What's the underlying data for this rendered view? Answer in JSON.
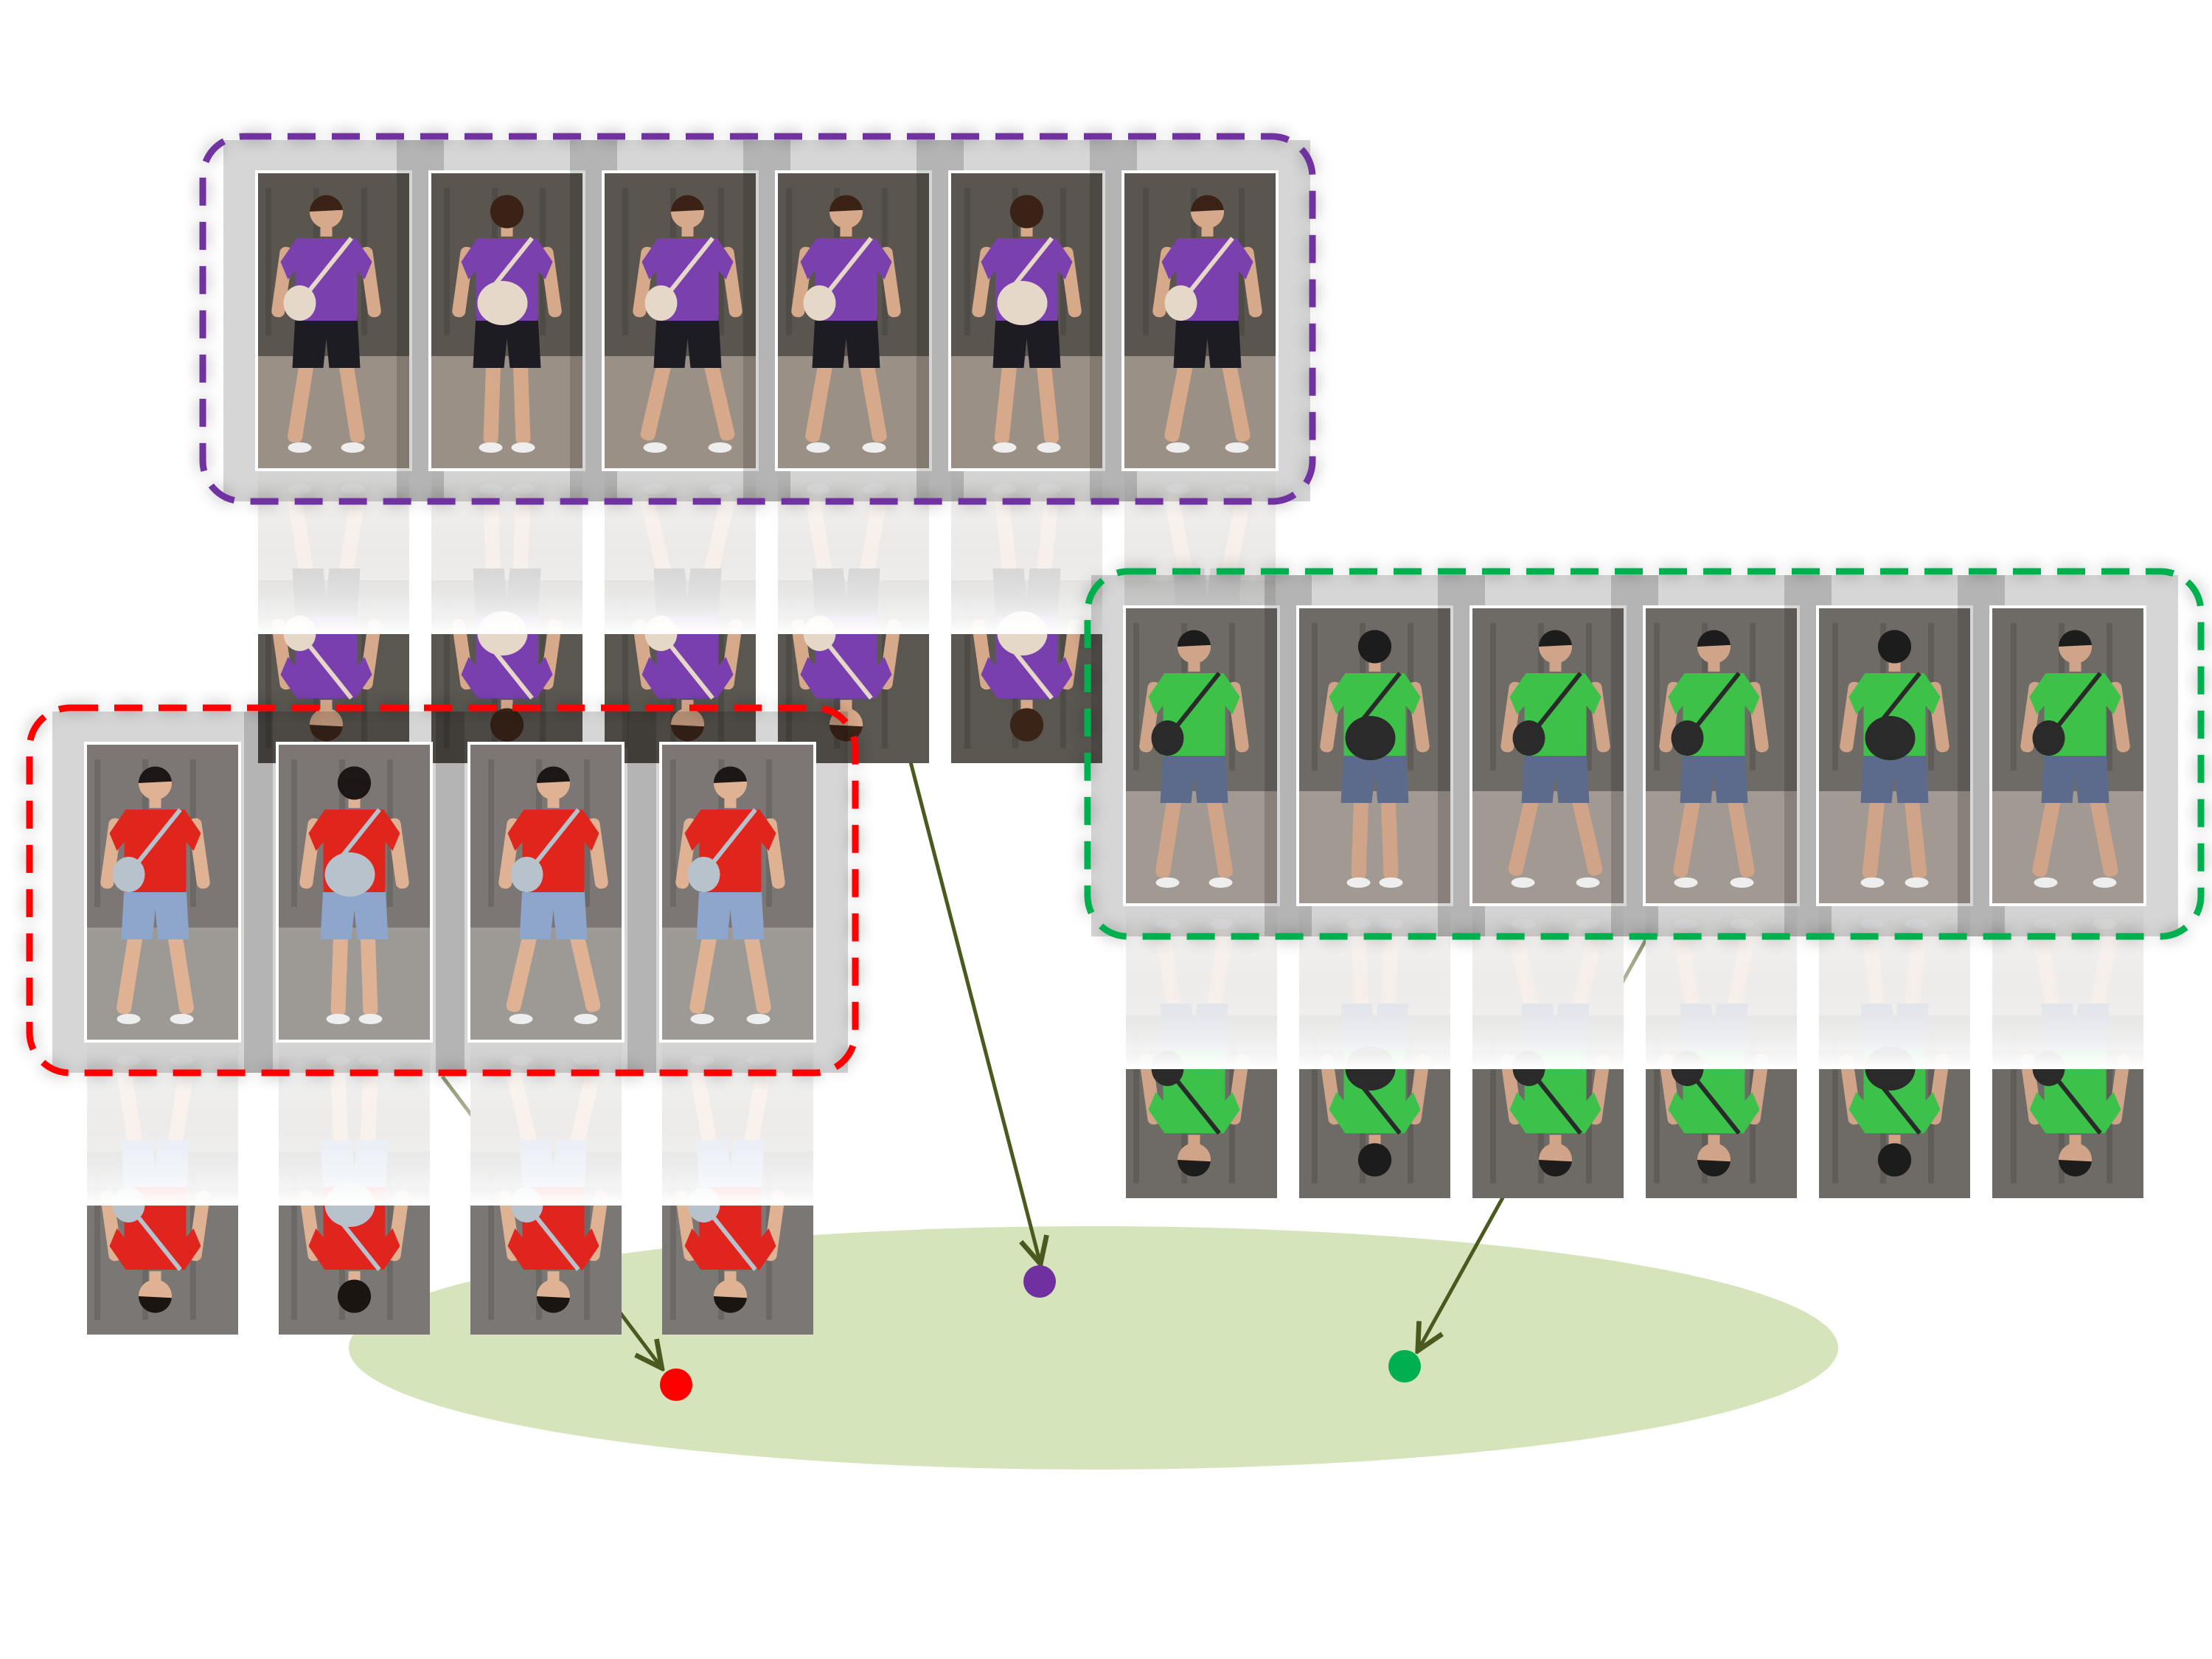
{
  "colors": {
    "background": "#ffffff",
    "embedding_space": "#d6e4bc",
    "arrow": "#4a5a1f",
    "purple": "#7030a0",
    "green": "#00b050",
    "red": "#ff0000"
  },
  "diagram": {
    "embedding_space": {
      "shape": "ellipse",
      "fill": "#d6e4bc"
    },
    "identity_groups": [
      {
        "id": "purple",
        "border_color": "#7030a0",
        "border_style": "dashed",
        "image_count": 6,
        "subject": {
          "shirt": "#7a3fae",
          "shorts": "#1e1e22",
          "skin": "#d6a98a",
          "hair": "#3a2418",
          "bag": "#e6d8c8",
          "ground": "#9b9086",
          "backdrop": "#5a5650"
        }
      },
      {
        "id": "green",
        "border_color": "#00b050",
        "border_style": "dashed",
        "image_count": 6,
        "subject": {
          "shirt": "#3cc14a",
          "shorts": "#5b6b8c",
          "skin": "#cfa488",
          "hair": "#1c1c1c",
          "bag": "#2a2a2a",
          "ground": "#a29a92",
          "backdrop": "#6e6a66"
        }
      },
      {
        "id": "red",
        "border_color": "#ff0000",
        "border_style": "dashed",
        "image_count": 4,
        "subject": {
          "shirt": "#e0251f",
          "shorts": "#8ea6cc",
          "skin": "#e0b294",
          "hair": "#1b1512",
          "bag": "#b7c2cc",
          "ground": "#9d9994",
          "backdrop": "#7b7774"
        }
      }
    ],
    "embedding_points": [
      {
        "id": "purple",
        "color": "#7030a0"
      },
      {
        "id": "green",
        "color": "#00b050"
      },
      {
        "id": "red",
        "color": "#ff0000"
      }
    ]
  }
}
